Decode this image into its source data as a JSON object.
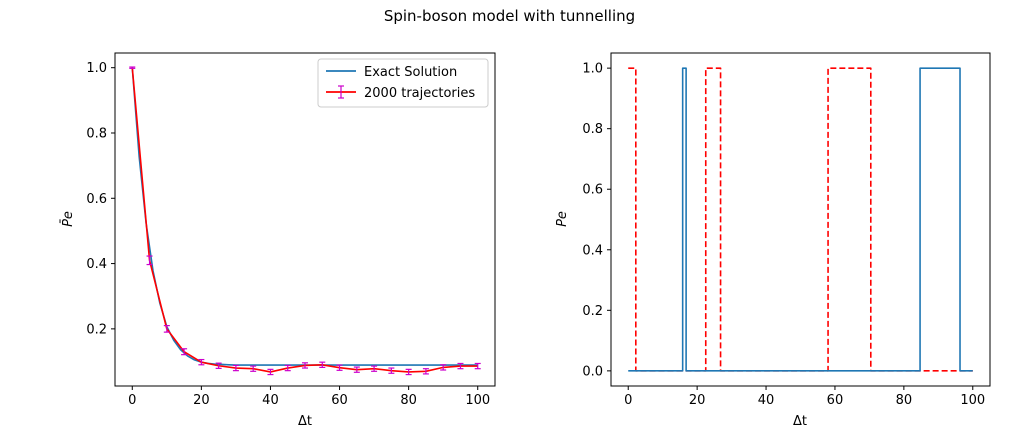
{
  "figure": {
    "title": "Spin-boson model with tunnelling"
  },
  "chart_data": [
    {
      "type": "line",
      "xlabel": "Δt",
      "ylabel": "P̄e",
      "xlim": [
        -5,
        105
      ],
      "ylim": [
        0.025,
        1.045
      ],
      "xticks": [
        0,
        20,
        40,
        60,
        80,
        100
      ],
      "yticks": [
        0.2,
        0.4,
        0.6,
        0.8,
        1.0
      ],
      "xtick_labels": [
        "0",
        "20",
        "40",
        "60",
        "80",
        "100"
      ],
      "ytick_labels": [
        "0.2",
        "0.4",
        "0.6",
        "0.8",
        "1.0"
      ],
      "legend": {
        "position": "top-right",
        "entries": [
          "Exact Solution",
          "2000 trajectories"
        ]
      },
      "series": [
        {
          "name": "Exact Solution",
          "color": "#1f77b4",
          "x": [
            0,
            2,
            4,
            6,
            8,
            10,
            12,
            14,
            16,
            18,
            20,
            22,
            24,
            26,
            28,
            30,
            35,
            40,
            50,
            60,
            70,
            80,
            90,
            100
          ],
          "y": [
            1.0,
            0.727,
            0.524,
            0.378,
            0.278,
            0.207,
            0.165,
            0.136,
            0.117,
            0.105,
            0.098,
            0.094,
            0.092,
            0.091,
            0.09,
            0.089,
            0.089,
            0.089,
            0.089,
            0.089,
            0.089,
            0.089,
            0.089,
            0.089
          ]
        },
        {
          "name": "2000 trajectories",
          "color": "#ff0000",
          "errorbar_color": "#cc00cc",
          "x": [
            0,
            5,
            10,
            15,
            20,
            25,
            30,
            35,
            40,
            45,
            50,
            55,
            60,
            65,
            70,
            75,
            80,
            85,
            90,
            95,
            100
          ],
          "y": [
            1.0,
            0.41,
            0.2,
            0.13,
            0.098,
            0.087,
            0.08,
            0.078,
            0.068,
            0.08,
            0.088,
            0.09,
            0.081,
            0.075,
            0.078,
            0.072,
            0.068,
            0.07,
            0.082,
            0.086,
            0.086
          ],
          "yerr": [
            0.002,
            0.013,
            0.01,
            0.009,
            0.008,
            0.008,
            0.008,
            0.008,
            0.008,
            0.008,
            0.008,
            0.008,
            0.008,
            0.008,
            0.008,
            0.008,
            0.008,
            0.008,
            0.008,
            0.008,
            0.008
          ]
        }
      ]
    },
    {
      "type": "line",
      "xlabel": "Δt",
      "ylabel": "Pe",
      "xlim": [
        -5,
        105
      ],
      "ylim": [
        -0.05,
        1.05
      ],
      "xticks": [
        0,
        20,
        40,
        60,
        80,
        100
      ],
      "yticks": [
        0.0,
        0.2,
        0.4,
        0.6,
        0.8,
        1.0
      ],
      "xtick_labels": [
        "0",
        "20",
        "40",
        "60",
        "80",
        "100"
      ],
      "ytick_labels": [
        "0.0",
        "0.2",
        "0.4",
        "0.6",
        "0.8",
        "1.0"
      ],
      "series": [
        {
          "color": "#ff0000",
          "dashed": true,
          "x": [
            0,
            2.2,
            2.2,
            22.5,
            22.5,
            26.8,
            26.8,
            58.0,
            58.0,
            70.4,
            70.4,
            100
          ],
          "y": [
            1,
            1,
            0,
            0,
            1,
            1,
            0,
            0,
            1,
            1,
            0,
            0
          ]
        },
        {
          "color": "#1f77b4",
          "dashed": false,
          "x": [
            0,
            15.8,
            15.8,
            16.8,
            16.8,
            84.7,
            84.7,
            96.3,
            96.3,
            100
          ],
          "y": [
            0,
            0,
            1,
            1,
            0,
            0,
            1,
            1,
            0,
            0
          ]
        }
      ]
    }
  ]
}
